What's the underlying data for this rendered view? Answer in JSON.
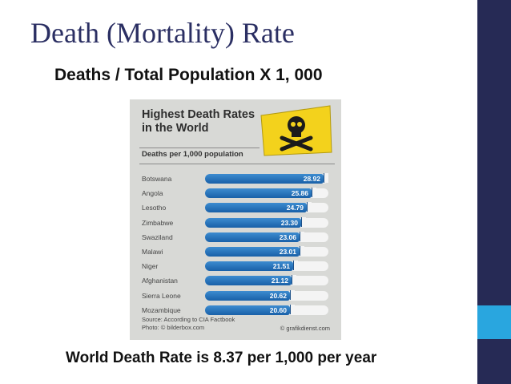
{
  "slide": {
    "title": "Death (Mortality) Rate",
    "formula": "Deaths / Total Population X 1, 000",
    "footer": "World Death Rate is 8.37 per 1,000 per year"
  },
  "infographic": {
    "title_line1": "Highest Death Rates",
    "title_line2": "in the World",
    "subtitle": "Deaths per 1,000 population",
    "source_line1": "Source: According to CIA Factbook",
    "source_line2": "Photo: © bilderbox.com",
    "credit": "© grafikdienst.com"
  },
  "colors": {
    "sidebar": "#262a55",
    "sidebar_accent": "#29a6df",
    "title": "#2b2f63",
    "bar": "#1f6ab5",
    "warning_sign": "#f3d21c"
  },
  "chart_data": {
    "type": "bar",
    "orientation": "horizontal",
    "title": "Highest Death Rates in the World",
    "subtitle": "Deaths per 1,000 population",
    "categories": [
      "Botswana",
      "Angola",
      "Lesotho",
      "Zimbabwe",
      "Swaziland",
      "Malawi",
      "Niger",
      "Afghanistan",
      "Sierra Leone",
      "Mozambique"
    ],
    "values": [
      28.92,
      25.86,
      24.79,
      23.3,
      23.06,
      23.01,
      21.51,
      21.12,
      20.62,
      20.6
    ],
    "value_labels": [
      "28.92",
      "25.86",
      "24.79",
      "23.30",
      "23.06",
      "23.01",
      "21.51",
      "21.12",
      "20.62",
      "20.60"
    ],
    "xlim": [
      0,
      30
    ]
  }
}
